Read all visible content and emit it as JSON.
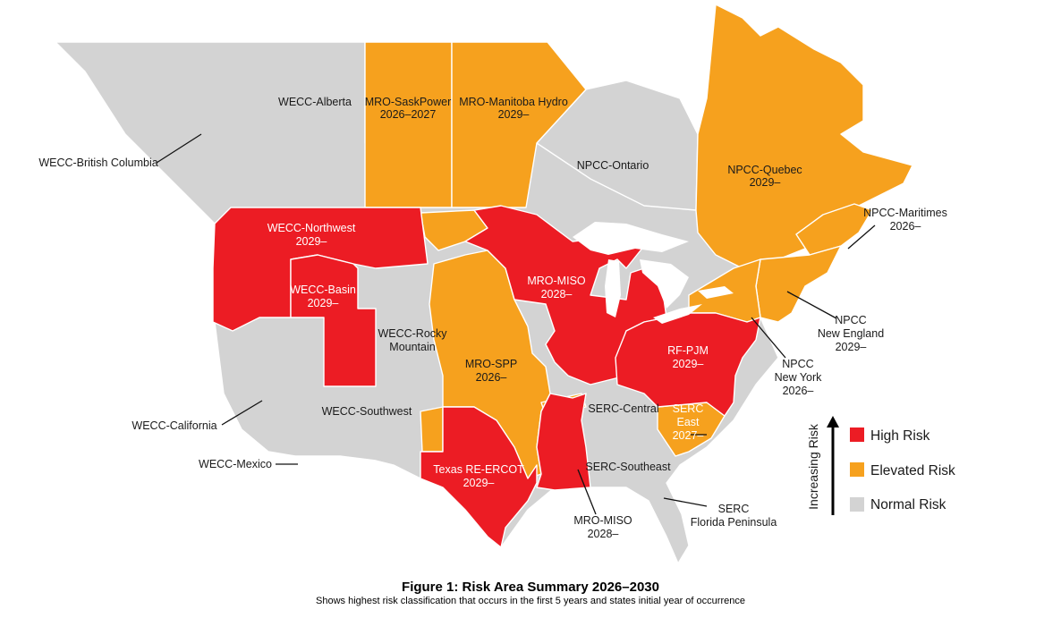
{
  "figure": {
    "title": "Figure 1: Risk Area Summary 2026–2030",
    "subtitle": "Shows highest risk classification that occurs in the first 5 years and states initial year of occurrence"
  },
  "legend": {
    "axis_label": "Increasing Risk",
    "items": [
      {
        "label": "High Risk",
        "color": "#ec1c24"
      },
      {
        "label": "Elevated Risk",
        "color": "#f6a11e"
      },
      {
        "label": "Normal Risk",
        "color": "#d3d3d3"
      }
    ]
  },
  "regions": {
    "wecc_bc": {
      "lines": [
        "WECC-British Columbia"
      ],
      "risk": "normal"
    },
    "wecc_alberta": {
      "lines": [
        "WECC-Alberta"
      ],
      "risk": "normal"
    },
    "mro_saskpower": {
      "lines": [
        "MRO-SaskPower",
        "2026–2027"
      ],
      "risk": "elevated"
    },
    "mro_manitoba": {
      "lines": [
        "MRO-Manitoba Hydro",
        "2029–"
      ],
      "risk": "elevated"
    },
    "npcc_ontario": {
      "lines": [
        "NPCC-Ontario"
      ],
      "risk": "normal"
    },
    "npcc_quebec": {
      "lines": [
        "NPCC-Quebec",
        "2029–"
      ],
      "risk": "elevated"
    },
    "npcc_maritimes": {
      "lines": [
        "NPCC-Maritimes",
        "2026–"
      ],
      "risk": "elevated"
    },
    "wecc_northwest": {
      "lines": [
        "WECC-Northwest",
        "2029–"
      ],
      "risk": "high"
    },
    "wecc_basin": {
      "lines": [
        "WECC-Basin",
        "2029–"
      ],
      "risk": "high"
    },
    "wecc_rocky": {
      "lines": [
        "WECC-Rocky",
        "Mountain"
      ],
      "risk": "normal"
    },
    "mro_miso_north": {
      "lines": [
        "MRO-MISO",
        "2028–"
      ],
      "risk": "high"
    },
    "mro_spp": {
      "lines": [
        "MRO-SPP",
        "2026–"
      ],
      "risk": "elevated"
    },
    "npcc_new_england": {
      "lines": [
        "NPCC",
        "New England",
        "2029–"
      ],
      "risk": "elevated"
    },
    "npcc_new_york": {
      "lines": [
        "NPCC",
        "New York",
        "2026–"
      ],
      "risk": "elevated"
    },
    "rf_pjm": {
      "lines": [
        "RF-PJM",
        "2029–"
      ],
      "risk": "high"
    },
    "serc_central": {
      "lines": [
        "SERC-Central"
      ],
      "risk": "normal"
    },
    "serc_east": {
      "lines": [
        "SERC",
        "East",
        "2027–"
      ],
      "risk": "elevated"
    },
    "wecc_california": {
      "lines": [
        "WECC-California"
      ],
      "risk": "normal"
    },
    "wecc_southwest": {
      "lines": [
        "WECC-Southwest"
      ],
      "risk": "normal"
    },
    "wecc_mexico": {
      "lines": [
        "WECC-Mexico"
      ],
      "risk": "normal"
    },
    "texas_ercot": {
      "lines": [
        "Texas RE-ERCOT",
        "2029–"
      ],
      "risk": "high"
    },
    "serc_southeast": {
      "lines": [
        "SERC-Southeast"
      ],
      "risk": "normal"
    },
    "mro_miso_south": {
      "lines": [
        "MRO-MISO",
        "2028–"
      ],
      "risk": "high"
    },
    "serc_florida": {
      "lines": [
        "SERC",
        "Florida Peninsula"
      ],
      "risk": "normal"
    }
  }
}
